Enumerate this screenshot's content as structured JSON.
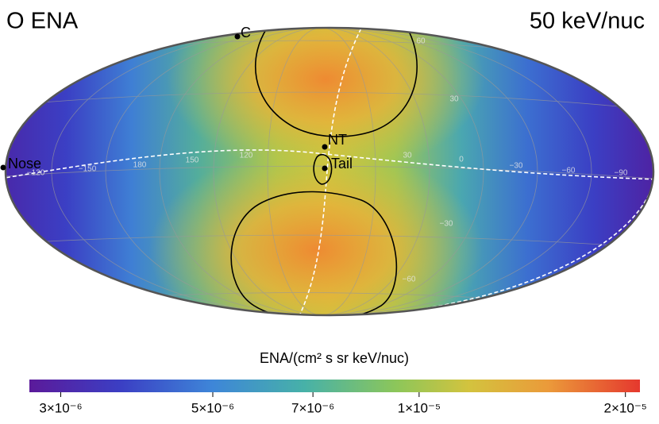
{
  "title": "O ENA",
  "energy": "50 keV/nuc",
  "markers": [
    {
      "label": "C"
    },
    {
      "label": "NT"
    },
    {
      "label": "Tail"
    },
    {
      "label": "Nose"
    }
  ],
  "grid_labels": [
    "−120",
    "−150",
    "180",
    "150",
    "120",
    "30",
    "0",
    "−30",
    "−60",
    "−90",
    "60",
    "30",
    "−30",
    "−60"
  ],
  "colorbar": {
    "label": "ENA/(cm² s sr keV/nuc)",
    "log": true,
    "lim": [
      2.7e-06,
      2.1e-05
    ],
    "ticks": [
      {
        "value": 3e-06,
        "label": "3×10⁻⁶"
      },
      {
        "value": 5e-06,
        "label": "5×10⁻⁶"
      },
      {
        "value": 7e-06,
        "label": "7×10⁻⁶"
      },
      {
        "value": 1e-05,
        "label": "1×10⁻⁵"
      },
      {
        "value": 2e-05,
        "label": "2×10⁻⁵"
      }
    ]
  }
}
